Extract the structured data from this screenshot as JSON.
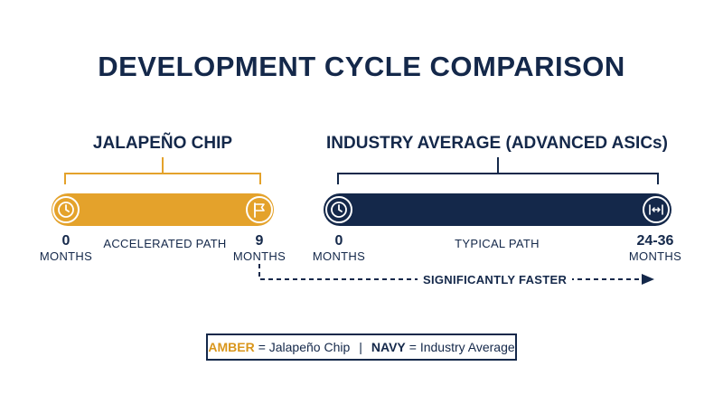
{
  "title": "DEVELOPMENT CYCLE COMPARISON",
  "colors": {
    "amber": "#e4a22b",
    "navy": "#14284a"
  },
  "jalapeno": {
    "heading": "JALAPEÑO CHIP",
    "start_value": "0",
    "start_unit": "MONTHS",
    "end_value": "9",
    "end_unit": "MONTHS",
    "path_label": "ACCELERATED PATH",
    "start_icon": "clock-icon",
    "end_icon": "flag-icon"
  },
  "industry": {
    "heading": "INDUSTRY AVERAGE (ADVANCED ASICs)",
    "start_value": "0",
    "start_unit": "MONTHS",
    "end_value": "24-36",
    "end_unit": "MONTHS",
    "path_label": "TYPICAL PATH",
    "start_icon": "clock-icon",
    "end_icon": "range-arrows-icon"
  },
  "comparison_label": "SIGNIFICANTLY FASTER",
  "legend": {
    "amber_key": "AMBER",
    "amber_text": "= Jalapeño Chip",
    "separator": "|",
    "navy_key": "NAVY",
    "navy_text": "= Industry Average"
  }
}
